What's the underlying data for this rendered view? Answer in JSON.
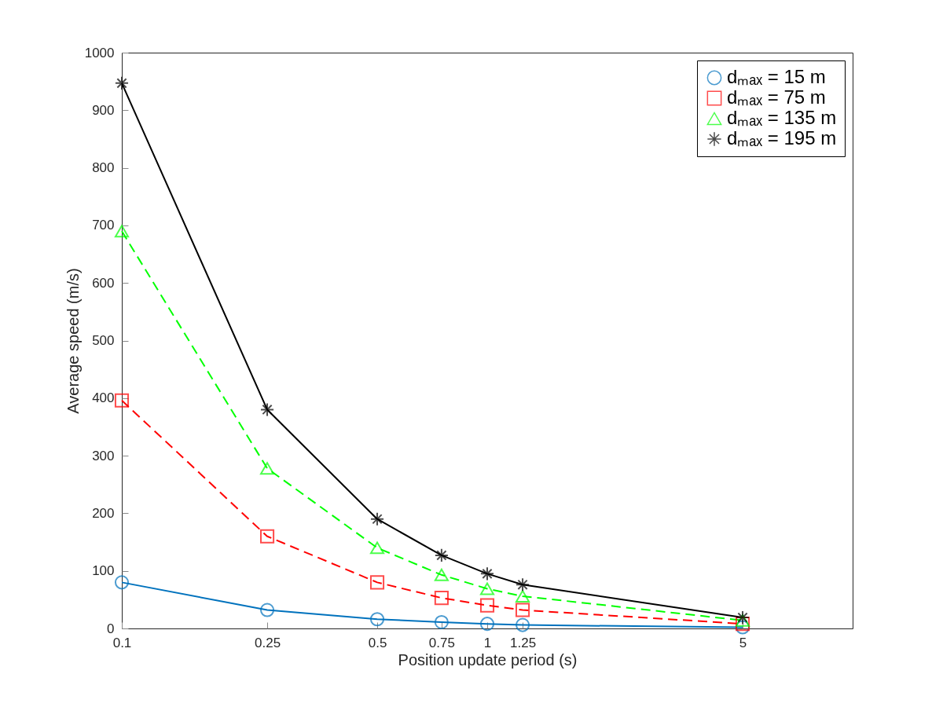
{
  "chart_data": {
    "type": "line",
    "xlabel": "Position update period (s)",
    "ylabel": "Average speed (m/s)",
    "x": [
      0.1,
      0.25,
      0.5,
      0.75,
      1,
      1.25,
      5
    ],
    "xlim": [
      0.1,
      10
    ],
    "xticks": [
      0.1,
      0.25,
      0.5,
      0.75,
      1,
      1.25,
      5
    ],
    "ylim": [
      0,
      1000
    ],
    "yticks": [
      0,
      100,
      200,
      300,
      400,
      500,
      600,
      700,
      800,
      900,
      1000
    ],
    "log": "x",
    "grid": false,
    "legend": "top right",
    "series": [
      {
        "name": "dₘₐₓ = 15 m",
        "color": "#0072bd",
        "marker": "circle",
        "line_style": "solid",
        "values": [
          80,
          32,
          16,
          11,
          8,
          6,
          2
        ]
      },
      {
        "name": "dₘₐₓ = 75 m",
        "color": "#ff0000",
        "marker": "square",
        "line_style": "dashed",
        "values": [
          396,
          160,
          80,
          53,
          40,
          32,
          8
        ]
      },
      {
        "name": "dₘₐₓ = 135 m",
        "color": "#00ff00",
        "marker": "triangle",
        "line_style": "dashed",
        "values": [
          690,
          278,
          140,
          93,
          69,
          56,
          14
        ]
      },
      {
        "name": "dₘₐₓ = 195 m",
        "color": "#000000",
        "marker": "cross",
        "line_style": "solid",
        "values": [
          947,
          380,
          190,
          127,
          95,
          76,
          19
        ]
      }
    ]
  }
}
